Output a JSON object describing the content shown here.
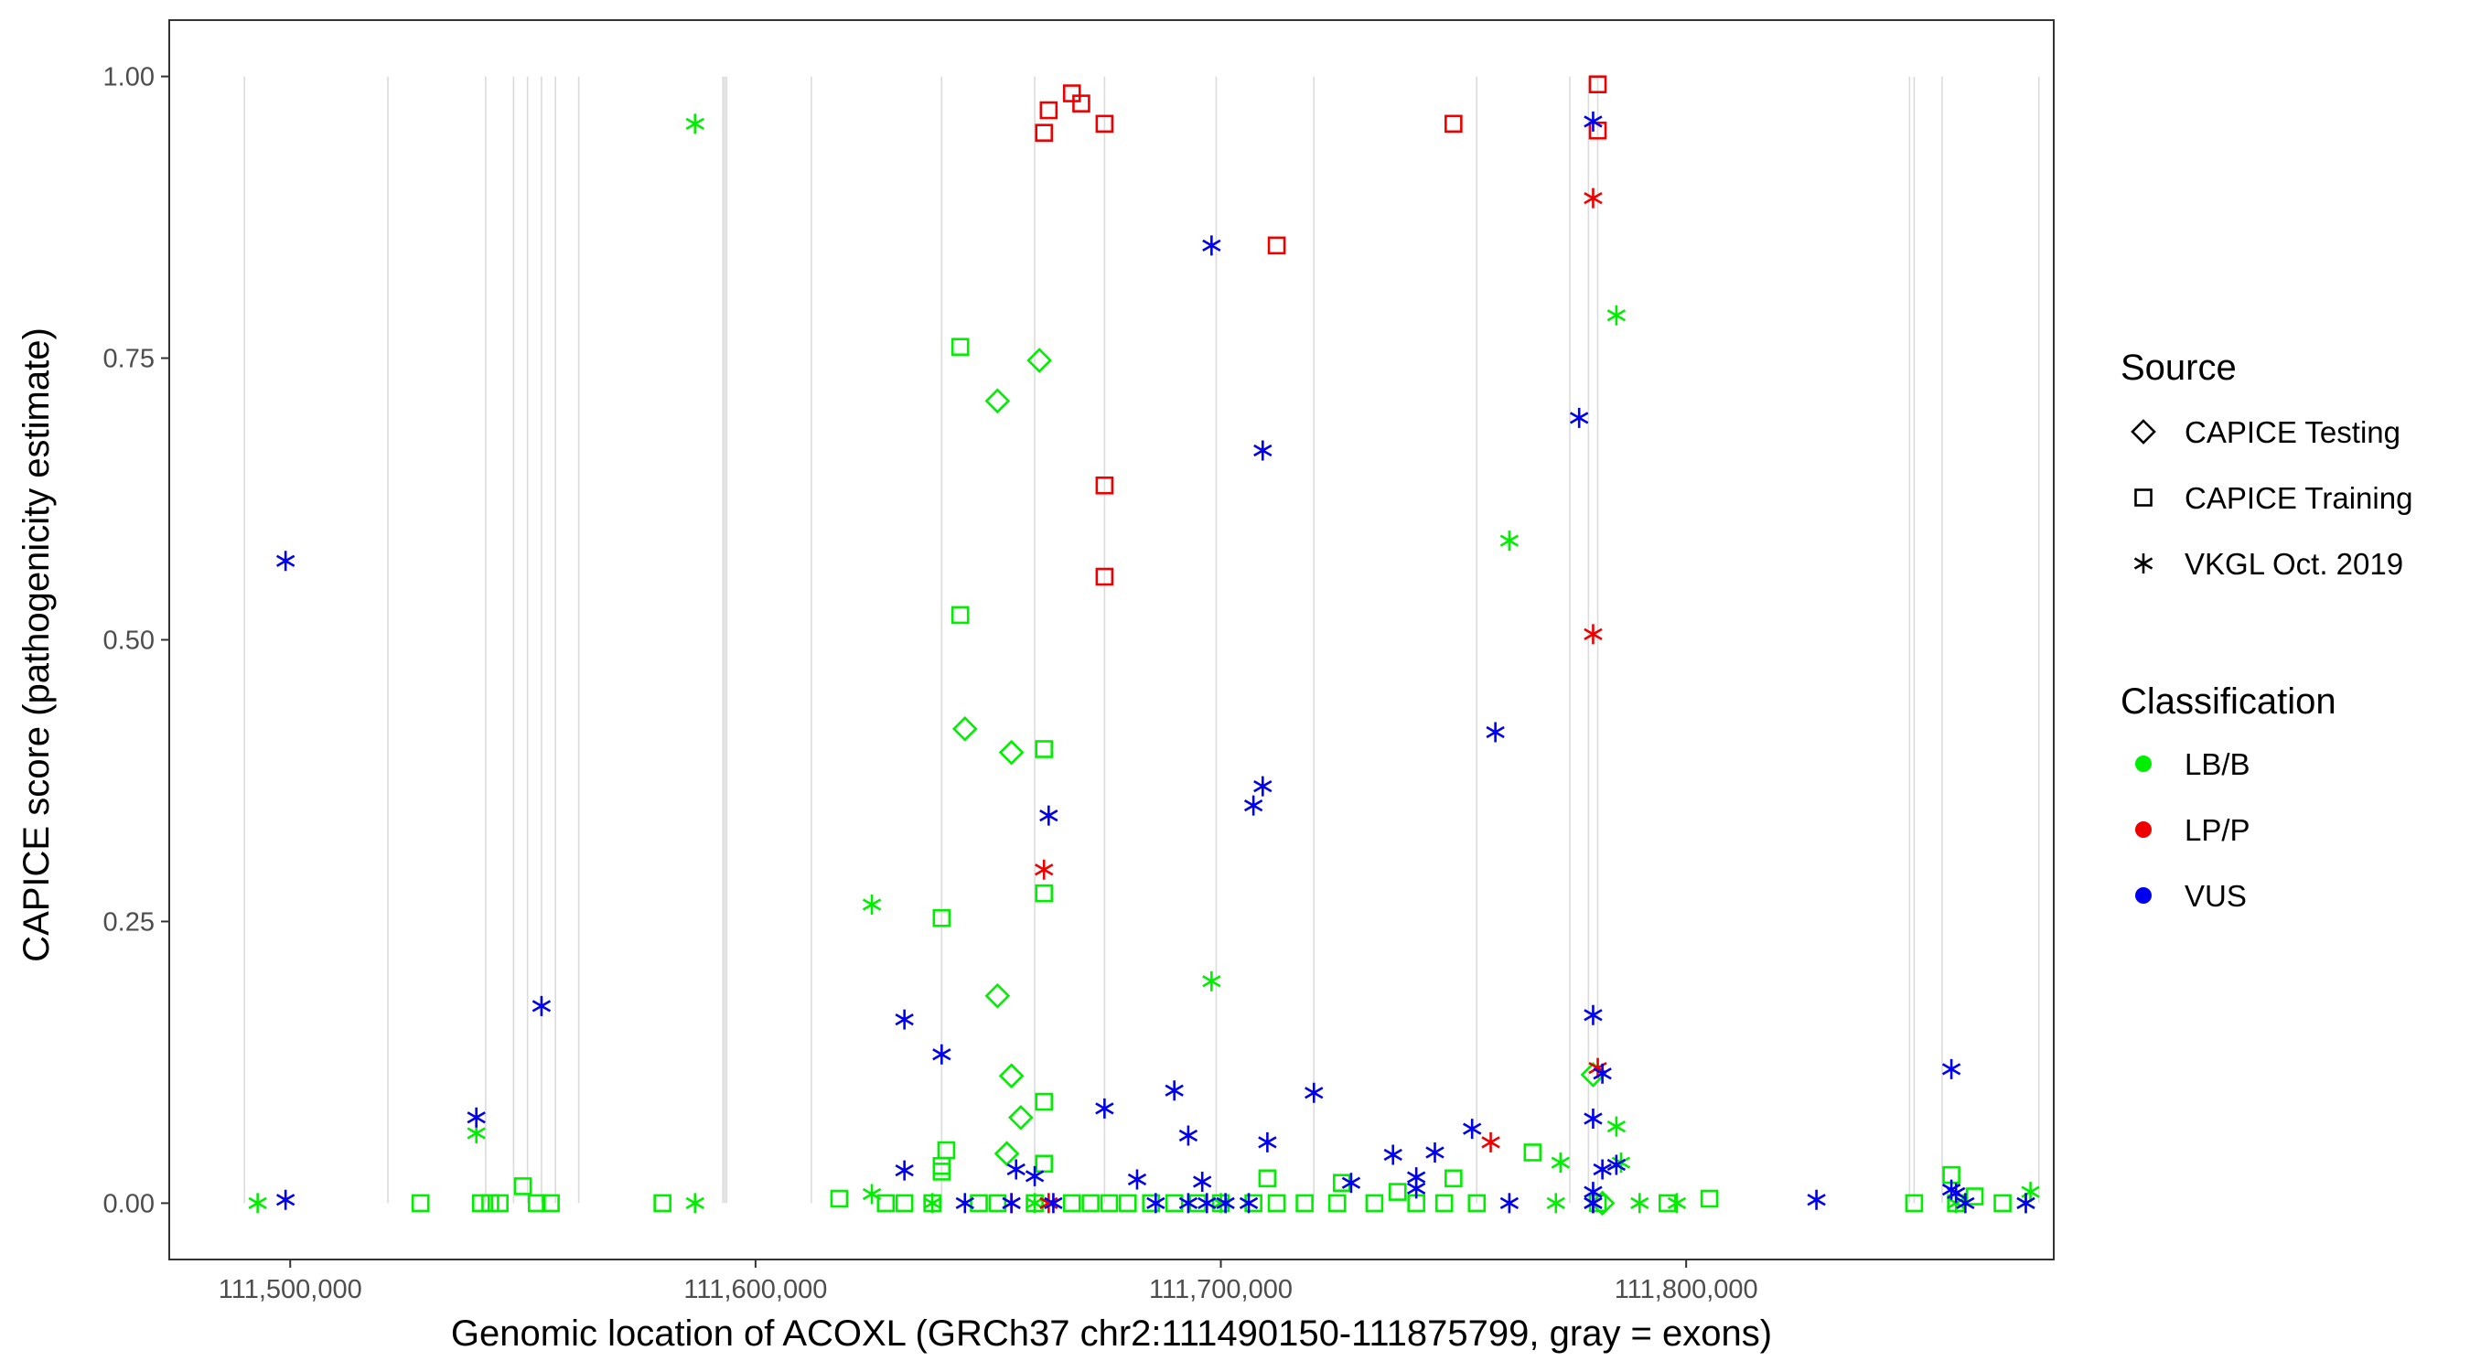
{
  "chart_data": {
    "type": "scatter",
    "title": "",
    "xlabel": "Genomic location of ACOXL (GRCh37 chr2:111490150-111875799, gray = exons)",
    "ylabel": "CAPICE score (pathogenicity estimate)",
    "xlim": [
      111474000,
      111879000
    ],
    "ylim": [
      -0.05,
      1.05
    ],
    "x_ticks": [
      111500000,
      111600000,
      111700000,
      111800000
    ],
    "x_tick_labels": [
      "111,500,000",
      "111,600,000",
      "111,700,000",
      "111,800,000"
    ],
    "y_ticks": [
      0,
      0.25,
      0.5,
      0.75,
      1.0
    ],
    "y_tick_labels": [
      "0.00",
      "0.25",
      "0.50",
      "0.75",
      "1.00"
    ],
    "exons": [
      111490150,
      111521000,
      111542000,
      111548000,
      111551000,
      111554000,
      111557000,
      111562000,
      111593000,
      111593400,
      111593800,
      111612000,
      111640000,
      111660000,
      111675000,
      111699000,
      111720000,
      111755000,
      111775000,
      111779000,
      111781000,
      111848000,
      111849000,
      111855000,
      111875799
    ],
    "legend": {
      "position": "right",
      "source_title": "Source",
      "source_items": [
        {
          "label": "CAPICE Testing",
          "shape": "diamond"
        },
        {
          "label": "CAPICE Training",
          "shape": "square"
        },
        {
          "label": "VKGL Oct. 2019",
          "shape": "asterisk"
        }
      ],
      "class_title": "Classification",
      "class_items": [
        {
          "label": "LB/B",
          "color": "#00ee00"
        },
        {
          "label": "LP/P",
          "color": "#ee0000"
        },
        {
          "label": "VUS",
          "color": "#0000ee"
        }
      ]
    },
    "series": [
      {
        "source": "CAPICE Training",
        "classification": "LP/P",
        "points": [
          [
            111663000,
            0.97
          ],
          [
            111668000,
            0.985
          ],
          [
            111670000,
            0.976
          ],
          [
            111662000,
            0.95
          ],
          [
            111675000,
            0.958
          ],
          [
            111750000,
            0.958
          ],
          [
            111781000,
            0.993
          ],
          [
            111781000,
            0.952
          ],
          [
            111712000,
            0.85
          ],
          [
            111675000,
            0.637
          ],
          [
            111675000,
            0.556
          ]
        ]
      },
      {
        "source": "CAPICE Training",
        "classification": "LB/B",
        "points": [
          [
            111644000,
            0.76
          ],
          [
            111644000,
            0.522
          ],
          [
            111640000,
            0.253
          ],
          [
            111662000,
            0.403
          ],
          [
            111662000,
            0.275
          ],
          [
            111662000,
            0.09
          ],
          [
            111641000,
            0.047
          ],
          [
            111640000,
            0.033
          ],
          [
            111640000,
            0.028
          ],
          [
            111662000,
            0.035
          ],
          [
            111550000,
            0.015
          ],
          [
            111767000,
            0.045
          ],
          [
            111710000,
            0.022
          ],
          [
            111726000,
            0.018
          ],
          [
            111750000,
            0.022
          ],
          [
            111857000,
            0.025
          ],
          [
            111618000,
            0.004
          ],
          [
            111528000,
            0.0
          ],
          [
            111541000,
            0.0
          ],
          [
            111543000,
            0.0
          ],
          [
            111545000,
            0.0
          ],
          [
            111553000,
            0.0
          ],
          [
            111556000,
            0.0
          ],
          [
            111580000,
            0.0
          ],
          [
            111628000,
            0.0
          ],
          [
            111632000,
            0.0
          ],
          [
            111638000,
            0.0
          ],
          [
            111648000,
            0.0
          ],
          [
            111652000,
            0.0
          ],
          [
            111660000,
            0.0
          ],
          [
            111668000,
            0.0
          ],
          [
            111672000,
            0.0
          ],
          [
            111676000,
            0.0
          ],
          [
            111680000,
            0.0
          ],
          [
            111685000,
            0.0
          ],
          [
            111690000,
            0.0
          ],
          [
            111695000,
            0.0
          ],
          [
            111700000,
            0.0
          ],
          [
            111707000,
            0.0
          ],
          [
            111712000,
            0.0
          ],
          [
            111718000,
            0.0
          ],
          [
            111725000,
            0.0
          ],
          [
            111733000,
            0.0
          ],
          [
            111738000,
            0.01
          ],
          [
            111742000,
            0.0
          ],
          [
            111748000,
            0.0
          ],
          [
            111755000,
            0.0
          ],
          [
            111781000,
            0.0
          ],
          [
            111796000,
            0.0
          ],
          [
            111805000,
            0.004
          ],
          [
            111849000,
            0.0
          ],
          [
            111858000,
            0.0
          ],
          [
            111862000,
            0.006
          ],
          [
            111868000,
            0.0
          ]
        ]
      },
      {
        "source": "CAPICE Testing",
        "classification": "LB/B",
        "points": [
          [
            111661000,
            0.748
          ],
          [
            111652000,
            0.712
          ],
          [
            111645000,
            0.421
          ],
          [
            111655000,
            0.4
          ],
          [
            111652000,
            0.184
          ],
          [
            111655000,
            0.113
          ],
          [
            111657000,
            0.076
          ],
          [
            111654000,
            0.044
          ],
          [
            111780000,
            0.114
          ],
          [
            111782000,
            0.0
          ]
        ]
      },
      {
        "source": "VKGL Oct. 2019",
        "classification": "LB/B",
        "points": [
          [
            111587000,
            0.958
          ],
          [
            111785000,
            0.788
          ],
          [
            111762000,
            0.588
          ],
          [
            111625000,
            0.265
          ],
          [
            111698000,
            0.197
          ],
          [
            111540000,
            0.062
          ],
          [
            111785000,
            0.068
          ],
          [
            111773000,
            0.036
          ],
          [
            111786000,
            0.036
          ],
          [
            111493000,
            0.0
          ],
          [
            111587000,
            0.0
          ],
          [
            111625000,
            0.008
          ],
          [
            111638000,
            0.0
          ],
          [
            111660000,
            0.0
          ],
          [
            111700000,
            0.0
          ],
          [
            111772000,
            0.0
          ],
          [
            111790000,
            0.0
          ],
          [
            111798000,
            0.0
          ],
          [
            111858000,
            0.0
          ],
          [
            111873000,
            0.0
          ],
          [
            111874000,
            0.01
          ]
        ]
      },
      {
        "source": "VKGL Oct. 2019",
        "classification": "LP/P",
        "points": [
          [
            111780000,
            0.892
          ],
          [
            111780000,
            0.505
          ],
          [
            111662000,
            0.296
          ],
          [
            111758000,
            0.054
          ],
          [
            111781000,
            0.12
          ],
          [
            111655000,
            0.0
          ],
          [
            111663000,
            0.0
          ],
          [
            111780000,
            0.0
          ]
        ]
      },
      {
        "source": "VKGL Oct. 2019",
        "classification": "VUS",
        "points": [
          [
            111780000,
            0.96
          ],
          [
            111698000,
            0.85
          ],
          [
            111777000,
            0.697
          ],
          [
            111709000,
            0.668
          ],
          [
            111499000,
            0.57
          ],
          [
            111759000,
            0.418
          ],
          [
            111709000,
            0.37
          ],
          [
            111707000,
            0.353
          ],
          [
            111663000,
            0.344
          ],
          [
            111554000,
            0.175
          ],
          [
            111780000,
            0.167
          ],
          [
            111632000,
            0.163
          ],
          [
            111640000,
            0.132
          ],
          [
            111857000,
            0.119
          ],
          [
            111782000,
            0.115
          ],
          [
            111720000,
            0.098
          ],
          [
            111690000,
            0.1
          ],
          [
            111675000,
            0.084
          ],
          [
            111540000,
            0.076
          ],
          [
            111780000,
            0.075
          ],
          [
            111754000,
            0.066
          ],
          [
            111693000,
            0.06
          ],
          [
            111710000,
            0.054
          ],
          [
            111746000,
            0.045
          ],
          [
            111737000,
            0.043
          ],
          [
            111785000,
            0.034
          ],
          [
            111782000,
            0.03
          ],
          [
            111632000,
            0.029
          ],
          [
            111656000,
            0.03
          ],
          [
            111660000,
            0.024
          ],
          [
            111742000,
            0.023
          ],
          [
            111682000,
            0.021
          ],
          [
            111728000,
            0.018
          ],
          [
            111696000,
            0.019
          ],
          [
            111742000,
            0.013
          ],
          [
            111780000,
            0.01
          ],
          [
            111857000,
            0.012
          ],
          [
            111858000,
            0.009
          ],
          [
            111499000,
            0.003
          ],
          [
            111645000,
            0.0
          ],
          [
            111655000,
            0.0
          ],
          [
            111664000,
            0.0
          ],
          [
            111686000,
            0.0
          ],
          [
            111693000,
            0.0
          ],
          [
            111697000,
            0.0
          ],
          [
            111701000,
            0.0
          ],
          [
            111706000,
            0.0
          ],
          [
            111762000,
            0.0
          ],
          [
            111780000,
            0.0
          ],
          [
            111828000,
            0.003
          ],
          [
            111860000,
            0.0
          ],
          [
            111873000,
            0.0
          ]
        ]
      }
    ]
  }
}
